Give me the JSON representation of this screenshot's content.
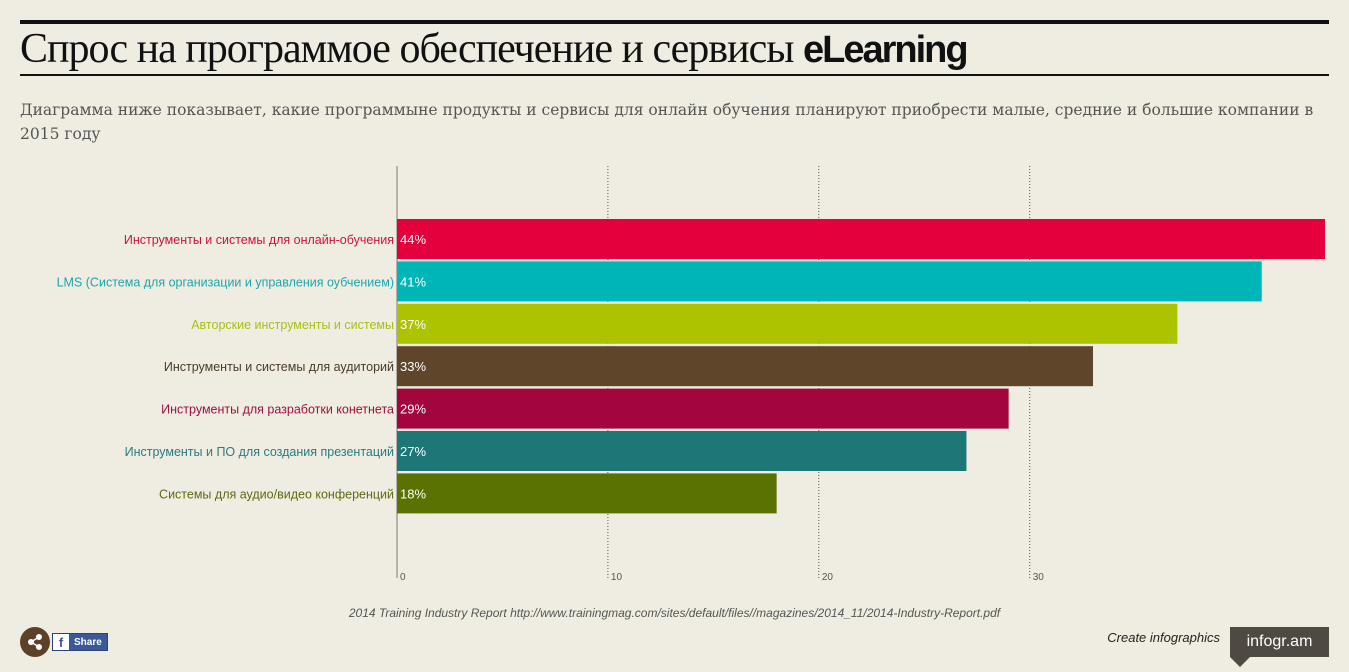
{
  "header": {
    "title": "Спрос на программое обеспечение и сервисы ",
    "title_brand": "eLearning",
    "subtitle": "Диаграмма ниже показывает, какие программыне продукты и сервисы для онлайн обучения планируют приобрести малые, средние и большие компании в 2015 году"
  },
  "chart_data": {
    "type": "bar",
    "orientation": "horizontal",
    "categories": [
      "Инструменты и системы для онлайн-обучения",
      "LMS (Система для организации и управления оубчением)",
      "Авторские инструменты и системы",
      "Инструменты и системы для аудиторий",
      "Инструменты для разработки конетнета",
      "Инструменты и ПО для создания презентаций",
      "Системы для аудио/видео конференций"
    ],
    "values": [
      44,
      41,
      37,
      33,
      29,
      27,
      18
    ],
    "value_labels": [
      "44%",
      "41%",
      "37%",
      "33%",
      "29%",
      "27%",
      "18%"
    ],
    "colors": [
      "#e4003c",
      "#00b5b5",
      "#acc400",
      "#5f462b",
      "#a2063d",
      "#1f7676",
      "#5a7201"
    ],
    "label_colors": [
      "#d0103f",
      "#1aa6b0",
      "#a6bf1a",
      "#4a3a2a",
      "#9a1040",
      "#2a7a80",
      "#5b6b10"
    ],
    "xlim": [
      0,
      44
    ],
    "x_ticks": [
      0,
      10,
      20,
      30
    ],
    "x_tick_labels": [
      "0",
      "10",
      "20",
      "30"
    ],
    "grid": true
  },
  "footer": {
    "source": "2014 Training Industry Report http://www.trainingmag.com/sites/default/files//magazines/2014_11/2014-Industry-Report.pdf",
    "share_label": "Share",
    "fb_letter": "f",
    "create_text": "Create infographics",
    "badge_text": "infogr.am"
  }
}
